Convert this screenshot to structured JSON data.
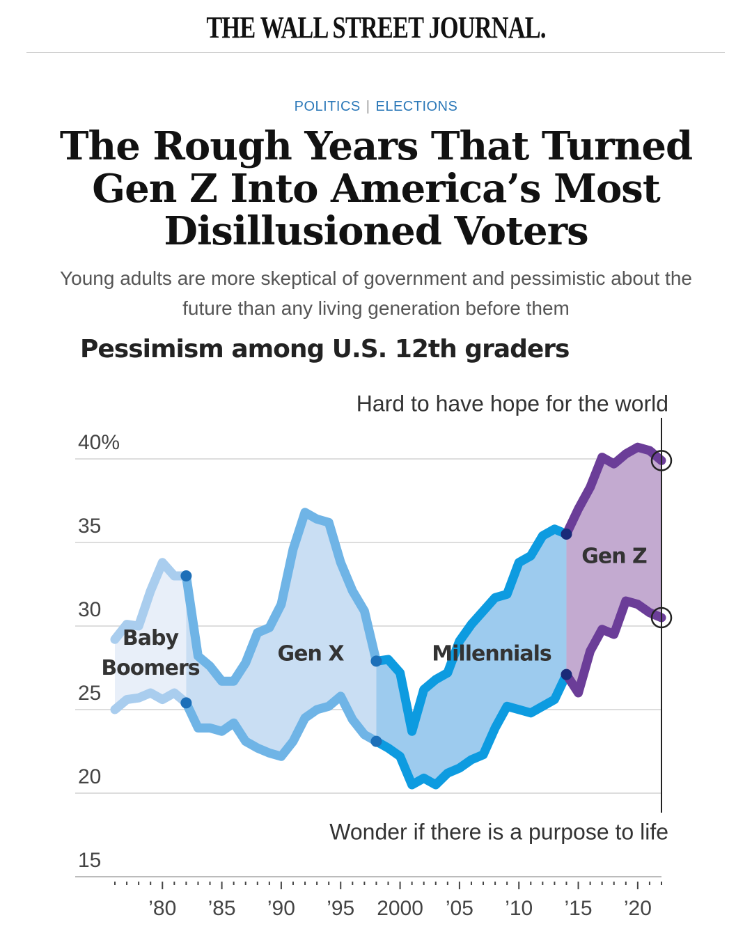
{
  "header": {
    "masthead": "THE WALL STREET JOURNAL.",
    "section": "POLITICS",
    "subsection": "ELECTIONS",
    "headline": "The Rough Years That Turned Gen Z Into America’s Most Disillusioned Voters",
    "dek": "Young adults are more skeptical of government and pessimistic about the future than any living generation before them"
  },
  "chart_data": {
    "type": "line",
    "title": "Pessimism among U.S. 12th graders",
    "x": [
      1976,
      1977,
      1978,
      1979,
      1980,
      1981,
      1982,
      1983,
      1984,
      1985,
      1986,
      1987,
      1988,
      1989,
      1990,
      1991,
      1992,
      1993,
      1994,
      1995,
      1996,
      1997,
      1998,
      1999,
      2000,
      2001,
      2002,
      2003,
      2004,
      2005,
      2006,
      2007,
      2008,
      2009,
      2010,
      2011,
      2012,
      2013,
      2014,
      2015,
      2016,
      2017,
      2018,
      2019,
      2020,
      2021,
      2022
    ],
    "series": [
      {
        "name": "Hard to have hope for the world",
        "values": [
          29.2,
          30.1,
          30.0,
          32.1,
          33.8,
          33.0,
          33.0,
          28.2,
          27.6,
          26.7,
          26.7,
          27.8,
          29.6,
          29.9,
          31.3,
          34.6,
          36.8,
          36.4,
          36.2,
          33.8,
          32.1,
          30.9,
          27.9,
          28.0,
          27.2,
          23.7,
          26.2,
          26.8,
          27.2,
          29.1,
          30.1,
          30.9,
          31.7,
          31.9,
          33.8,
          34.2,
          35.4,
          35.8,
          35.5,
          37.0,
          38.3,
          40.1,
          39.7,
          40.3,
          40.7,
          40.5,
          39.9
        ]
      },
      {
        "name": "Wonder if there is a purpose to life",
        "values": [
          25.0,
          25.6,
          25.7,
          26.0,
          25.6,
          26.0,
          25.4,
          23.9,
          23.9,
          23.7,
          24.2,
          23.1,
          22.7,
          22.4,
          22.2,
          23.1,
          24.5,
          25.0,
          25.2,
          25.8,
          24.4,
          23.5,
          23.1,
          22.7,
          22.2,
          20.5,
          20.9,
          20.5,
          21.2,
          21.5,
          22.0,
          22.3,
          23.9,
          25.2,
          25.0,
          24.8,
          25.2,
          25.6,
          27.1,
          26.0,
          28.5,
          29.8,
          29.5,
          31.5,
          31.3,
          30.8,
          30.5
        ]
      }
    ],
    "generations": [
      {
        "name": "Baby Boomers",
        "start": 1976,
        "end": 1982,
        "color": "#a9cdee",
        "fill": "#e8eff9"
      },
      {
        "name": "Gen X",
        "start": 1982,
        "end": 1998,
        "color": "#6fb4e6",
        "fill": "#c9def3"
      },
      {
        "name": "Millennials",
        "start": 1998,
        "end": 2014,
        "color": "#0d9be0",
        "fill": "#9dcbee"
      },
      {
        "name": "Gen Z",
        "start": 2014,
        "end": 2022,
        "color": "#6b3d98",
        "fill": "#c3aad0"
      }
    ],
    "xlim": [
      1976,
      2022
    ],
    "ylim": [
      15,
      41.5
    ],
    "xticks": [
      {
        "value": 1980,
        "label": "’80"
      },
      {
        "value": 1985,
        "label": "’85"
      },
      {
        "value": 1990,
        "label": "’90"
      },
      {
        "value": 1995,
        "label": "’95"
      },
      2000,
      {
        "value": 2005,
        "label": "’05"
      },
      {
        "value": 2010,
        "label": "’10"
      },
      {
        "value": 2015,
        "label": "’15"
      },
      {
        "value": 2020,
        "label": "’20"
      }
    ],
    "yticks": [
      15,
      20,
      25,
      30,
      35,
      {
        "value": 40,
        "label": "40%"
      }
    ],
    "grid": true
  }
}
